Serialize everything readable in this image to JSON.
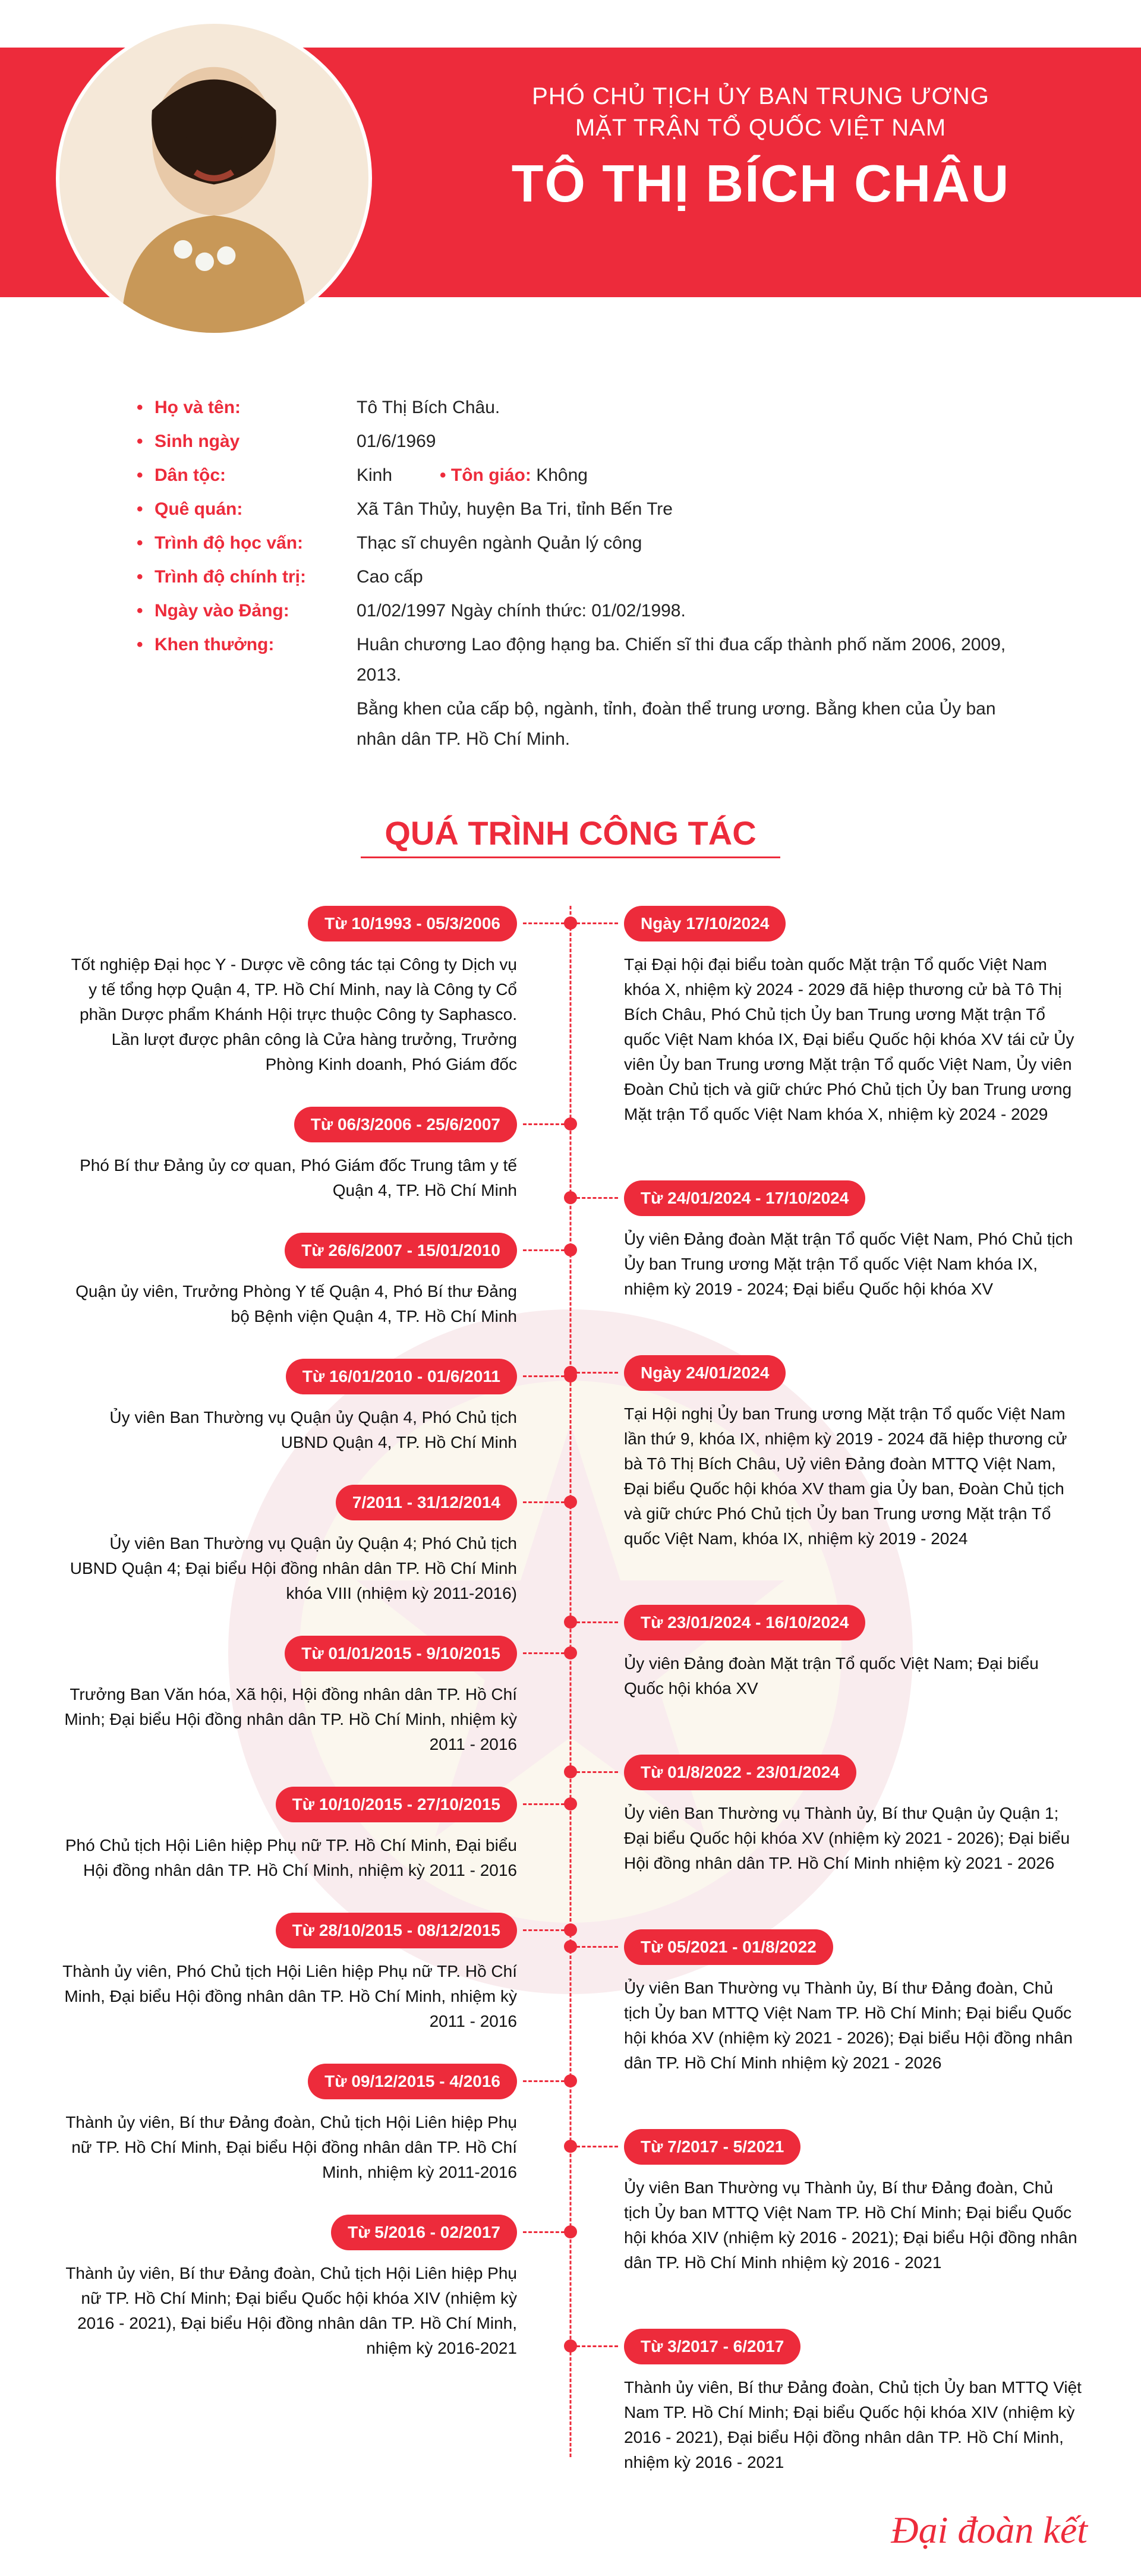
{
  "header": {
    "subtitle1": "PHÓ CHỦ TỊCH ỦY BAN TRUNG ƯƠNG",
    "subtitle2": "MẶT TRẬN TỔ QUỐC VIỆT NAM",
    "name": "TÔ THỊ BÍCH CHÂU"
  },
  "colors": {
    "primary": "#ed2b3b",
    "text": "#222222",
    "background": "#ffffff"
  },
  "info": [
    {
      "label": "Họ và tên:",
      "value": "Tô Thị Bích Châu."
    },
    {
      "label": "Sinh ngày",
      "value": "01/6/1969"
    },
    {
      "label": "Dân tộc:",
      "value": "Kinh",
      "extraLabel": "Tôn giáo:",
      "extraValue": "Không"
    },
    {
      "label": "Quê quán:",
      "value": "Xã Tân Thủy, huyện Ba Tri, tỉnh Bến Tre"
    },
    {
      "label": "Trình độ học vấn:",
      "value": "Thạc sĩ chuyên ngành Quản lý công"
    },
    {
      "label": "Trình độ chính trị:",
      "value": "Cao cấp"
    },
    {
      "label": "Ngày vào Đảng:",
      "value": "01/02/1997              Ngày chính thức: 01/02/1998."
    },
    {
      "label": "Khen thưởng:",
      "value": "Huân chương Lao động hạng ba. Chiến sĩ thi đua cấp thành phố năm 2006, 2009, 2013.",
      "cont": "Bằng khen của cấp bộ, ngành, tỉnh, đoàn thể trung ương. Bằng khen của Ủy ban nhân dân TP. Hồ Chí Minh."
    }
  ],
  "sectionTitle": "QUÁ TRÌNH CÔNG TÁC",
  "timelineLeft": [
    {
      "spacer": 0,
      "period": "Từ 10/1993 - 05/3/2006",
      "desc": "Tốt nghiệp Đại học Y - Dược về công tác tại Công ty Dịch vụ y tế tổng hợp Quận 4, TP. Hồ Chí Minh, nay là Công ty Cổ phần Dược phẩm Khánh Hội trực thuộc Công ty Saphasco. Lần lượt được phân công là Cửa hàng trưởng, Trưởng Phòng Kinh doanh, Phó Giám đốc"
    },
    {
      "spacer": 0,
      "period": "Từ 06/3/2006 - 25/6/2007",
      "desc": "Phó Bí thư Đảng ủy cơ quan, Phó Giám đốc Trung tâm y tế Quận 4, TP. Hồ Chí Minh"
    },
    {
      "spacer": 0,
      "period": "Từ 26/6/2007 - 15/01/2010",
      "desc": "Quận ủy viên, Trưởng Phòng Y tế Quận 4, Phó Bí thư Đảng bộ Bệnh viện Quận 4, TP. Hồ Chí Minh"
    },
    {
      "spacer": 0,
      "period": "Từ 16/01/2010 - 01/6/2011",
      "desc": "Ủy viên Ban Thường vụ Quận ủy Quận 4, Phó Chủ tịch UBND Quận 4, TP. Hồ Chí Minh"
    },
    {
      "spacer": 0,
      "period": "7/2011 - 31/12/2014",
      "desc": "Ủy viên Ban Thường vụ Quận ủy Quận 4; Phó Chủ tịch UBND Quận 4; Đại biểu Hội đồng nhân dân TP. Hồ Chí Minh khóa VIII (nhiệm kỳ 2011-2016)"
    },
    {
      "spacer": 0,
      "period": "Từ 01/01/2015 - 9/10/2015",
      "desc": "Trưởng Ban Văn hóa, Xã hội, Hội đồng nhân dân TP. Hồ Chí Minh; Đại biểu Hội đồng nhân dân TP. Hồ Chí Minh, nhiệm kỳ 2011 - 2016"
    },
    {
      "spacer": 0,
      "period": "Từ 10/10/2015 - 27/10/2015",
      "desc": "Phó Chủ tịch Hội Liên hiệp Phụ nữ TP. Hồ Chí Minh, Đại biểu Hội đồng nhân dân TP. Hồ Chí Minh, nhiệm kỳ 2011 - 2016"
    },
    {
      "spacer": 0,
      "period": "Từ 28/10/2015 - 08/12/2015",
      "desc": "Thành ủy viên, Phó Chủ tịch Hội Liên hiệp Phụ nữ TP. Hồ Chí Minh, Đại biểu Hội đồng nhân dân TP. Hồ Chí Minh, nhiệm kỳ 2011 - 2016"
    },
    {
      "spacer": 0,
      "period": "Từ 09/12/2015 - 4/2016",
      "desc": "Thành ủy viên, Bí thư Đảng đoàn, Chủ tịch Hội Liên hiệp Phụ nữ TP. Hồ Chí Minh, Đại biểu Hội đồng nhân dân TP. Hồ Chí Minh, nhiệm kỳ 2011-2016"
    },
    {
      "spacer": 0,
      "period": "Từ 5/2016 - 02/2017",
      "desc": "Thành ủy viên, Bí thư Đảng đoàn, Chủ tịch Hội Liên hiệp Phụ nữ TP. Hồ Chí Minh; Đại biểu Quốc hội khóa XIV (nhiệm kỳ 2016 - 2021), Đại biểu Hội đồng nhân dân TP. Hồ Chí Minh, nhiệm kỳ 2016-2021"
    }
  ],
  "timelineRight": [
    {
      "spacer": 0,
      "period": "Ngày 17/10/2024",
      "desc": "Tại Đại hội đại biểu toàn quốc Mặt trận Tổ quốc Việt Nam khóa X, nhiệm kỳ 2024 - 2029 đã hiệp thương cử bà Tô Thị Bích Châu, Phó Chủ tịch Ủy ban Trung ương Mặt trận Tổ quốc Việt Nam khóa IX, Đại biểu Quốc hội khóa XV tái cử Ủy viên Ủy ban Trung ương Mặt trận Tổ quốc Việt Nam, Ủy viên Đoàn Chủ tịch và giữ chức Phó Chủ tịch Ủy ban Trung ương Mặt trận Tổ quốc Việt Nam khóa X, nhiệm kỳ 2024 - 2029"
    },
    {
      "spacer": 40,
      "period": "Từ 24/01/2024 - 17/10/2024",
      "desc": "Ủy viên Đảng đoàn Mặt trận Tổ quốc Việt Nam, Phó Chủ tịch Ủy ban Trung ương Mặt trận Tổ quốc Việt Nam khóa IX, nhiệm kỳ 2019 - 2024; Đại biểu Quốc hội khóa XV"
    },
    {
      "spacer": 40,
      "period": "Ngày 24/01/2024",
      "desc": "Tại Hội nghị Ủy ban Trung ương Mặt trận Tổ quốc Việt Nam lần thứ 9, khóa IX, nhiệm kỳ 2019 - 2024 đã hiệp thương cử bà Tô Thị Bích Châu, Uỷ viên Đảng đoàn MTTQ Việt Nam, Đại biểu Quốc hội khóa XV tham gia Ủy ban, Đoàn Chủ tịch và giữ chức Phó Chủ tịch Ủy ban Trung ương Mặt trận Tổ quốc Việt Nam, khóa IX, nhiệm kỳ 2019 - 2024"
    },
    {
      "spacer": 40,
      "period": "Từ 23/01/2024 - 16/10/2024",
      "desc": "Ủy viên Đảng đoàn Mặt trận Tổ quốc Việt Nam; Đại biểu Quốc hội khóa XV"
    },
    {
      "spacer": 40,
      "period": "Từ 01/8/2022 - 23/01/2024",
      "desc": "Ủy viên Ban Thường vụ Thành ủy, Bí thư Quận ủy Quận 1; Đại biểu Quốc hội khóa XV (nhiệm kỳ 2021 - 2026); Đại biểu Hội đồng nhân dân TP. Hồ Chí Minh nhiệm kỳ 2021 - 2026"
    },
    {
      "spacer": 40,
      "period": "Từ 05/2021 - 01/8/2022",
      "desc": "Ủy viên Ban Thường vụ Thành ủy, Bí thư Đảng đoàn, Chủ tịch Ủy ban MTTQ Việt Nam TP. Hồ Chí Minh; Đại biểu Quốc hội khóa XV (nhiệm kỳ 2021 - 2026); Đại biểu Hội đồng nhân dân TP. Hồ Chí Minh nhiệm kỳ 2021 - 2026"
    },
    {
      "spacer": 40,
      "period": "Từ 7/2017 - 5/2021",
      "desc": "Ủy viên Ban Thường vụ Thành ủy, Bí thư Đảng đoàn, Chủ tịch Ủy ban MTTQ Việt Nam TP. Hồ Chí Minh; Đại biểu Quốc hội khóa XIV (nhiệm kỳ 2016 - 2021); Đại biểu Hội đồng nhân dân TP. Hồ Chí Minh nhiệm kỳ 2016 - 2021"
    },
    {
      "spacer": 40,
      "period": "Từ 3/2017 - 6/2017",
      "desc": "Thành ủy viên, Bí thư Đảng đoàn, Chủ tịch Ủy ban MTTQ Việt Nam TP. Hồ Chí Minh; Đại biểu Quốc hội khóa XIV (nhiệm kỳ 2016 - 2021), Đại biểu Hội đồng nhân dân TP. Hồ Chí Minh, nhiệm kỳ 2016 - 2021"
    }
  ],
  "footer": "Đại đoàn kết"
}
